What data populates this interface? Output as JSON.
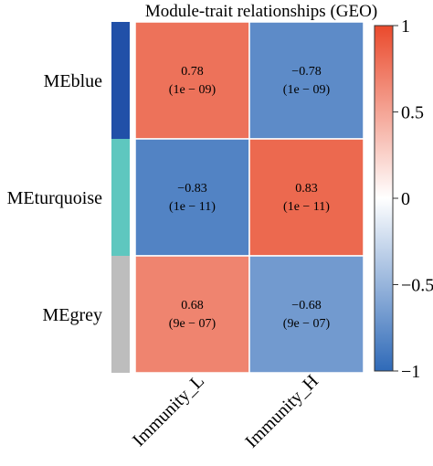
{
  "chart_data": {
    "type": "heatmap",
    "title": "Module-trait relationships (GEO)",
    "rows": [
      "MEblue",
      "MEturquoise",
      "MEgrey"
    ],
    "columns": [
      "Immunity_L",
      "Immunity_H"
    ],
    "values": [
      [
        0.78,
        -0.78
      ],
      [
        -0.83,
        0.83
      ],
      [
        0.68,
        -0.68
      ]
    ],
    "labels": [
      [
        "0.78",
        "−0.78"
      ],
      [
        "−0.83",
        "0.83"
      ],
      [
        "0.68",
        "−0.68"
      ]
    ],
    "pvalues": [
      [
        "(1e − 09)",
        "(1e − 09)"
      ],
      [
        "(1e − 11)",
        "(1e − 11)"
      ],
      [
        "(9e − 07)",
        "(9e − 07)"
      ]
    ],
    "row_colors": [
      "#2150a8",
      "#5ec7bf",
      "#bdbdbd"
    ],
    "colorscale": {
      "min": -1,
      "max": 1,
      "low_color": "#2f6ab8",
      "mid_color": "#ffffff",
      "high_color": "#e84a2b",
      "ticks": [
        1,
        0.5,
        0,
        -0.5,
        -1
      ],
      "tick_labels": [
        "1",
        "0.5",
        "0",
        "−0.5",
        "−1"
      ]
    },
    "grid": true,
    "legend": "right"
  }
}
